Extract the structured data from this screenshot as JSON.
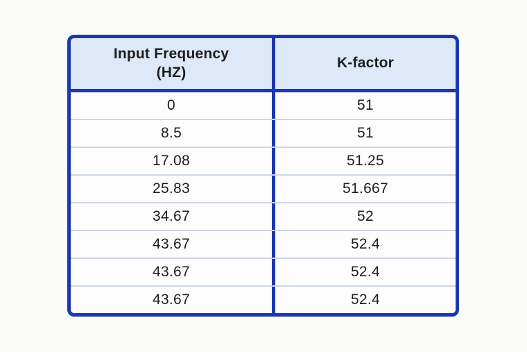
{
  "chart_data": {
    "type": "table",
    "columns": [
      "Input Frequency (HZ)",
      "K-factor"
    ],
    "rows": [
      [
        "0",
        "51"
      ],
      [
        "8.5",
        "51"
      ],
      [
        "17.08",
        "51.25"
      ],
      [
        "25.83",
        "51.667"
      ],
      [
        "34.67",
        "52"
      ],
      [
        "43.67",
        "52.4"
      ],
      [
        "43.67",
        "52.4"
      ],
      [
        "43.67",
        "52.4"
      ]
    ]
  },
  "colors": {
    "table_border_blue": "#1c38ae",
    "header_background": "#dde9f8",
    "row_background": "#fdfdfe",
    "row_separator": "#ccd4e4",
    "text": "#1d1d1f",
    "page_background": "#fbfbf9"
  }
}
